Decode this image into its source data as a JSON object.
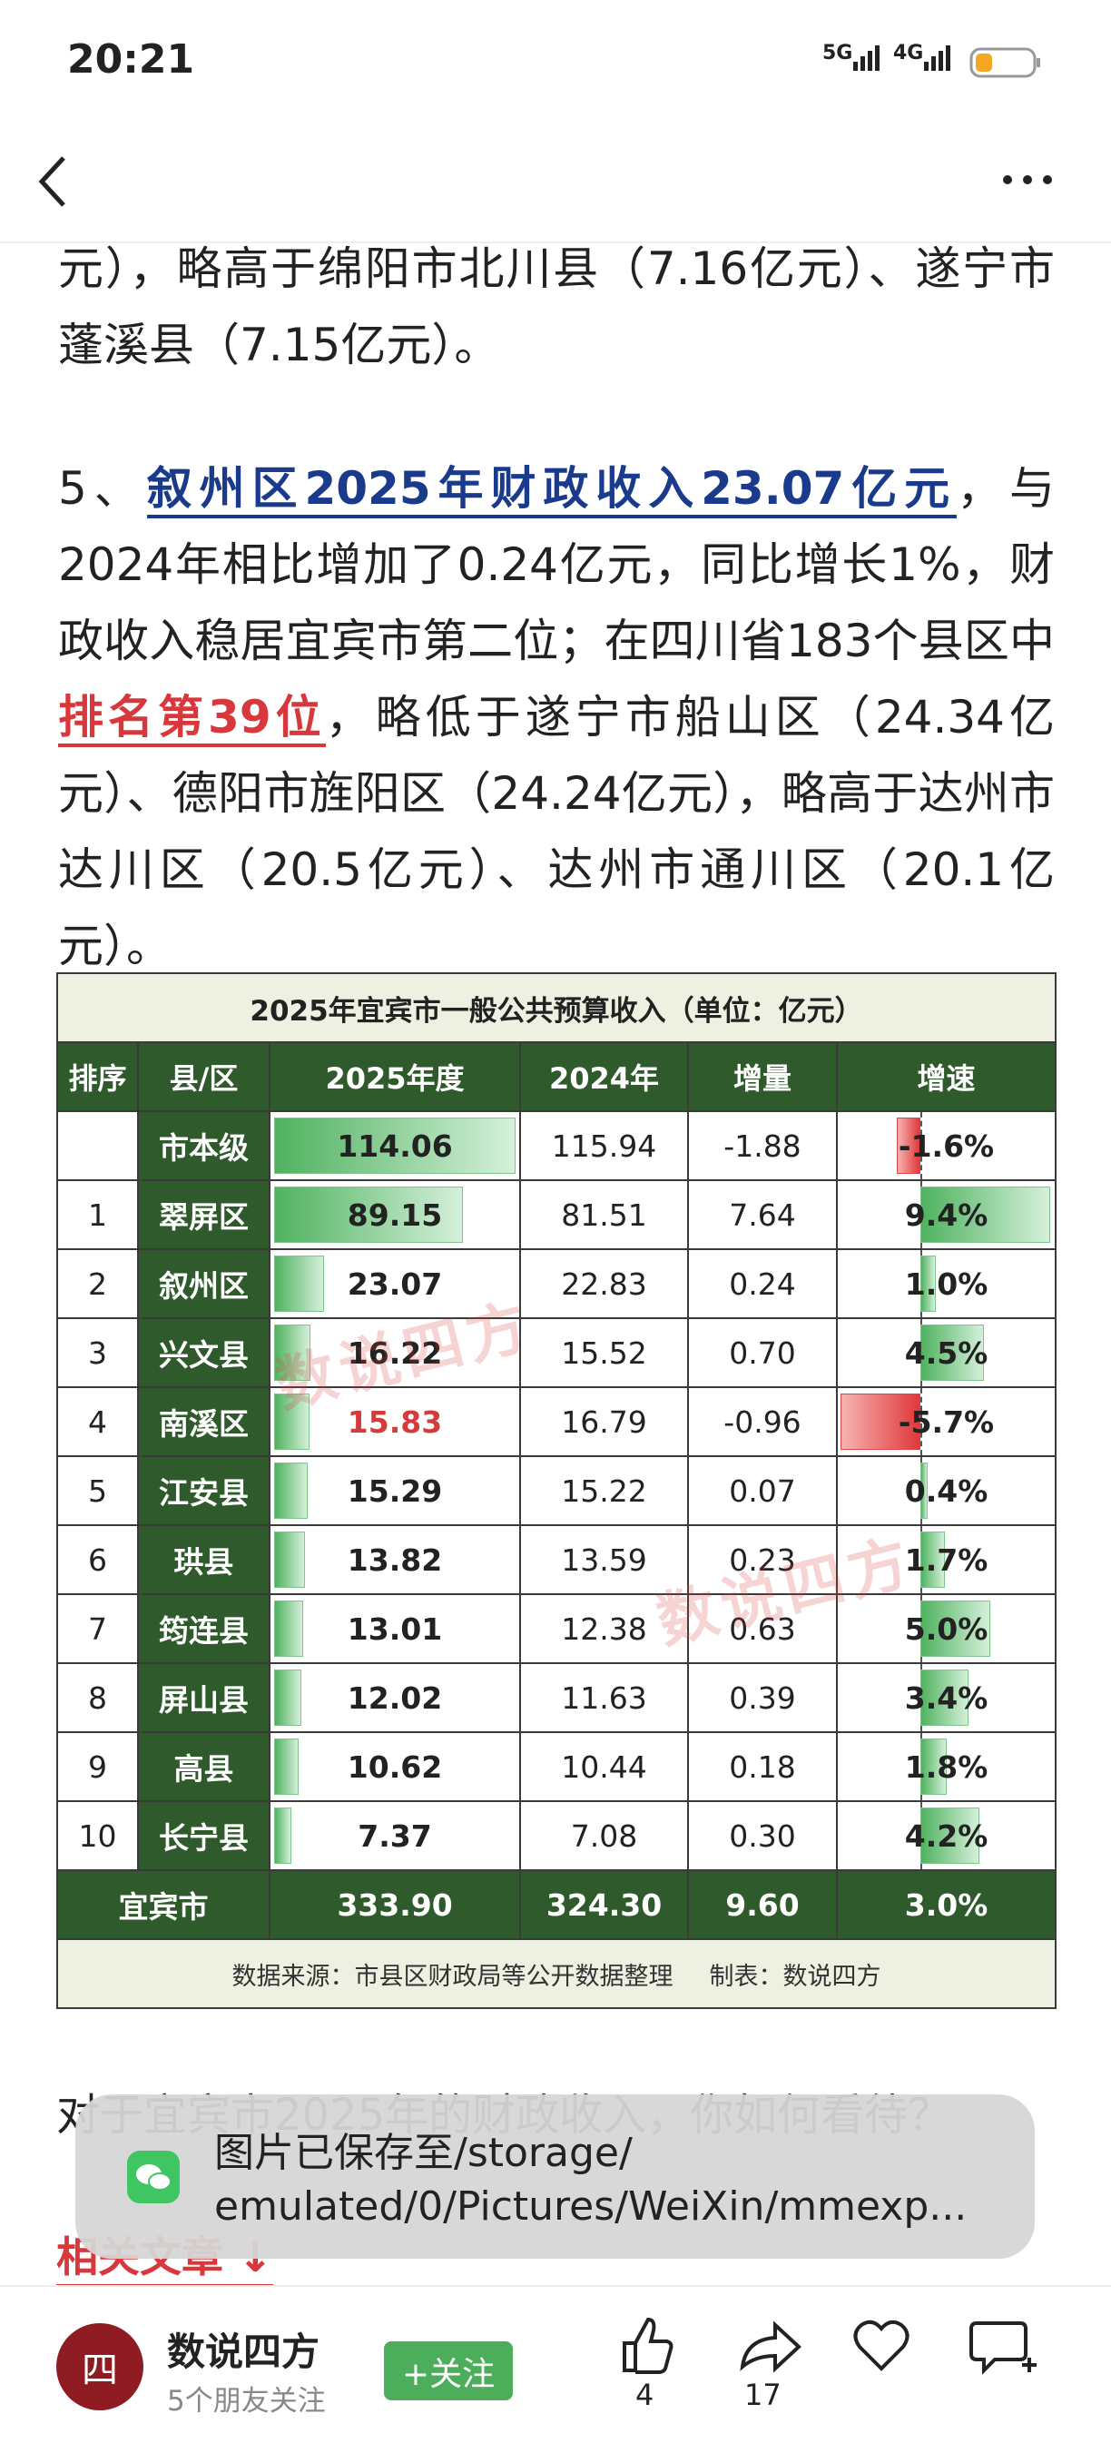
{
  "status_bar": {
    "time": "20:21",
    "network_1": "5G",
    "network_2": "4G"
  },
  "article": {
    "paragraphs": [
      {
        "segments": [
          {
            "text": "元），略高于绵阳市北川县（7.16亿元）、遂宁市蓬溪县（7.15亿元）。"
          }
        ]
      },
      {
        "segments": [
          {
            "text": "5、"
          },
          {
            "text": "叙州区2025年财政收入23.07亿元",
            "style": "blue"
          },
          {
            "text": "，与2024年相比增加了0.24亿元，同比增长1%，财政收入稳居宜宾市第二位；在四川省183个县区中"
          },
          {
            "text": "排名第39位",
            "style": "red"
          },
          {
            "text": "，略低于遂宁市船山区（24.34亿元）、德阳市旌阳区（24.24亿元），略高于达州市达川区（20.5亿元）、达州市通川区（20.1亿元）。"
          }
        ]
      }
    ],
    "next_paragraph": "对于宜宾市2025年的财政收入，你如何看待？",
    "related": "相关文章"
  },
  "table": {
    "title": "2025年宜宾市一般公共预算收入（单位：亿元）",
    "columns": [
      "排序",
      "县/区",
      "2025年度",
      "2024年",
      "增量",
      "增速"
    ],
    "rows": [
      [
        null,
        "市本级",
        "114.06",
        "115.94",
        "-1.88",
        "-1.6%"
      ],
      [
        1,
        "翠屏区",
        "89.15",
        "81.51",
        "7.64",
        "9.4%"
      ],
      [
        2,
        "叙州区",
        "23.07",
        "22.83",
        "0.24",
        "1.0%"
      ],
      [
        3,
        "兴文县",
        "16.22",
        "15.52",
        "0.70",
        "4.5%"
      ],
      [
        4,
        "南溪区",
        "15.83",
        "16.79",
        "-0.96",
        "-5.7%"
      ],
      [
        5,
        "江安县",
        "15.29",
        "15.22",
        "0.07",
        "0.4%"
      ],
      [
        6,
        "珙县",
        "13.82",
        "13.59",
        "0.23",
        "1.7%"
      ],
      [
        7,
        "筠连县",
        "13.01",
        "12.38",
        "0.63",
        "5.0%"
      ],
      [
        8,
        "屏山县",
        "12.02",
        "11.63",
        "0.39",
        "3.4%"
      ],
      [
        9,
        "高县",
        "10.62",
        "10.44",
        "0.18",
        "1.8%"
      ],
      [
        10,
        "长宁县",
        "7.37",
        "7.08",
        "0.30",
        "4.2%"
      ]
    ],
    "total": [
      "宜宾市",
      "333.90",
      "324.30",
      "9.60",
      "3.0%"
    ],
    "source": "数据来源：市县区财政局等公开数据整理",
    "maker": "制表：数说四方",
    "watermark": "数说四方"
  },
  "toast": {
    "lines": [
      "图片已保存至/storage/",
      "emulated/0/Pictures/WeiXin/mmexp..."
    ]
  },
  "footer": {
    "avatar": "四",
    "author": "数说四方",
    "followers": "5个朋友关注",
    "follow": "+关注",
    "likes": 4,
    "shares": 17
  }
}
